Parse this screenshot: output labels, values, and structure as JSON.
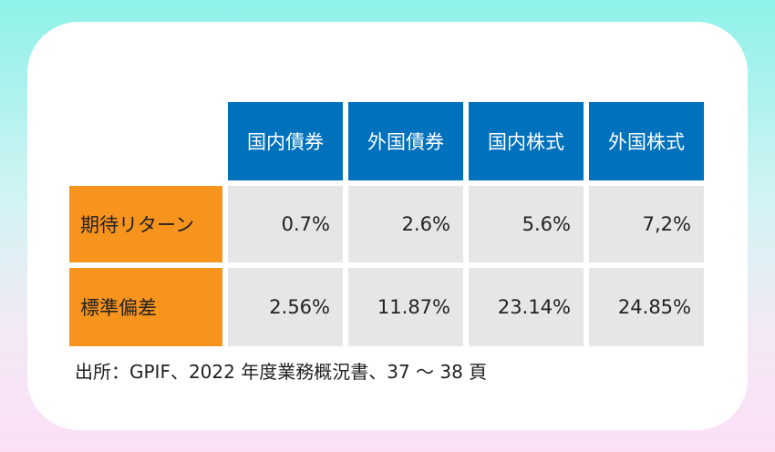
{
  "chart_data": {
    "type": "table",
    "columns": [
      "国内債券",
      "外国債券",
      "国内株式",
      "外国株式"
    ],
    "rows": [
      {
        "label": "期待リターン",
        "cells": [
          "0.7%",
          "2.6%",
          "5.6%",
          "7,2%"
        ]
      },
      {
        "label": "標準偏差",
        "cells": [
          "2.56%",
          "11.87%",
          "23.14%",
          "24.85%"
        ]
      }
    ]
  },
  "source_note": "出所：GPIF、2022 年度業務概況書、37 ～ 38 頁",
  "colors": {
    "header_blue": "#0071bc",
    "row_label_orange": "#f7941d",
    "cell_gray": "#e6e6e6"
  }
}
